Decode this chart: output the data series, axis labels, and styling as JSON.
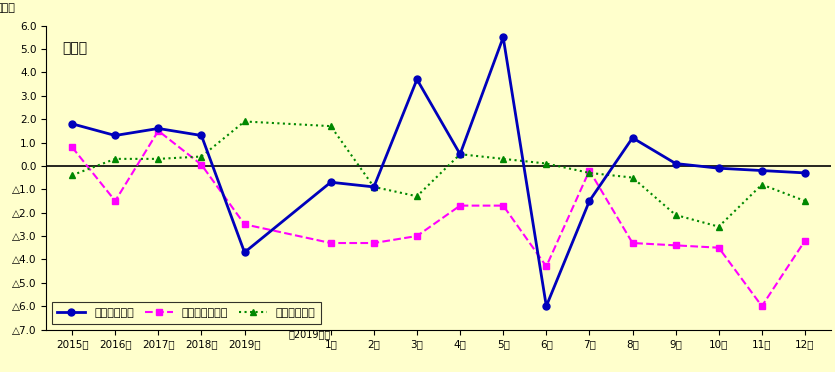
{
  "title": "製造業",
  "ylabel": "（％）",
  "background_color": "#FFFFCC",
  "ylim": [
    -7.0,
    6.0
  ],
  "ytick_vals": [
    6.0,
    5.0,
    4.0,
    3.0,
    2.0,
    1.0,
    0.0,
    -1.0,
    -2.0,
    -3.0,
    -4.0,
    -5.0,
    -6.0,
    -7.0
  ],
  "ytick_labels": [
    "6.0",
    "5.0",
    "4.0",
    "3.0",
    "2.0",
    "1.0",
    "0.0",
    "△1.0",
    "△2.0",
    "△3.0",
    "△4.0",
    "△5.0",
    "△6.0",
    "△7.0"
  ],
  "annual_labels": [
    "2015年",
    "2016年",
    "2017年",
    "2018年",
    "2019年"
  ],
  "monthly_labels": [
    "1月",
    "2月",
    "3月",
    "4月",
    "5月",
    "6月",
    "7月",
    "8月",
    "9月",
    "10月",
    "11月",
    "12月"
  ],
  "note_label": "（2019年）",
  "s1_label": "現金給与総額",
  "s2_label": "総実労働時間数",
  "s3_label": "常用労働者数",
  "s1_color": "#0000BB",
  "s2_color": "#FF00FF",
  "s3_color": "#008800",
  "s1_annual": [
    1.8,
    1.3,
    1.6,
    1.3,
    -3.7
  ],
  "s1_monthly": [
    -0.7,
    -0.9,
    3.7,
    0.5,
    5.5,
    -6.0,
    -1.5,
    1.2,
    0.1,
    -0.1,
    -0.2,
    -0.3
  ],
  "s2_annual": [
    0.8,
    -1.5,
    1.5,
    0.05,
    -2.5
  ],
  "s2_monthly": [
    -3.3,
    -3.3,
    -3.0,
    -1.7,
    -1.7,
    -4.3,
    -0.2,
    -3.3,
    -3.4,
    -3.5,
    -6.0,
    -3.2
  ],
  "s3_annual": [
    -0.4,
    0.3,
    0.3,
    0.4,
    1.9
  ],
  "s3_monthly": [
    1.7,
    -0.9,
    -1.3,
    0.5,
    0.3,
    0.1,
    -0.3,
    -0.5,
    -2.1,
    -2.6,
    -0.8,
    -1.5
  ]
}
